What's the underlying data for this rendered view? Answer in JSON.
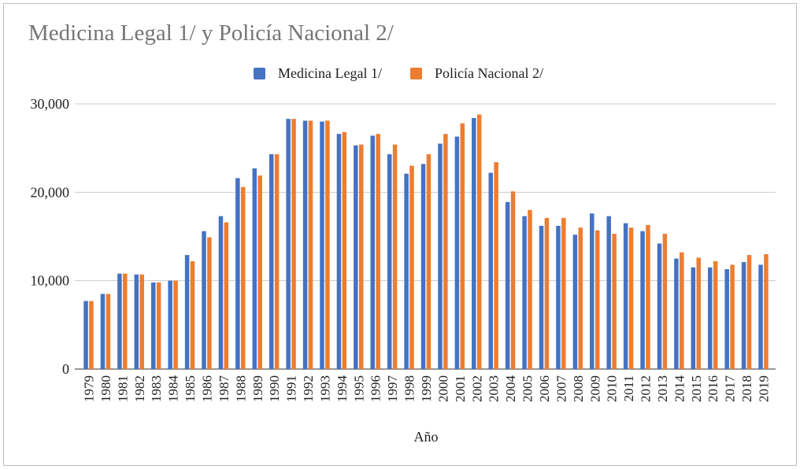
{
  "chart_data": {
    "type": "bar",
    "title": "Medicina Legal 1/ y Policía Nacional 2/",
    "xlabel": "Año",
    "ylabel": "",
    "ylim": [
      0,
      30000
    ],
    "yticks": [
      "0",
      "10,000",
      "20,000",
      "30,000"
    ],
    "grid": true,
    "legend_position": "top",
    "categories": [
      "1979",
      "1980",
      "1981",
      "1982",
      "1983",
      "1984",
      "1985",
      "1986",
      "1987",
      "1988",
      "1989",
      "1990",
      "1991",
      "1992",
      "1993",
      "1994",
      "1995",
      "1996",
      "1997",
      "1998",
      "1999",
      "2000",
      "2001",
      "2002",
      "2003",
      "2004",
      "2005",
      "2006",
      "2007",
      "2008",
      "2009",
      "2010",
      "2011",
      "2012",
      "2013",
      "2014",
      "2015",
      "2016",
      "2017",
      "2018",
      "2019"
    ],
    "series": [
      {
        "name": "Medicina Legal 1/",
        "color": "#4472c4",
        "values": [
          7700,
          8500,
          10800,
          10700,
          9800,
          10000,
          12900,
          15600,
          17300,
          21600,
          22700,
          24300,
          28300,
          28100,
          28000,
          26600,
          25300,
          26400,
          24300,
          22100,
          23200,
          25500,
          26300,
          28400,
          22200,
          18900,
          17300,
          16200,
          16200,
          15200,
          17600,
          17300,
          16500,
          15600,
          14200,
          12500,
          11500,
          11500,
          11300,
          12100,
          11800
        ]
      },
      {
        "name": "Policía Nacional 2/",
        "color": "#ed7d31",
        "values": [
          7700,
          8500,
          10800,
          10700,
          9800,
          10000,
          12200,
          14900,
          16600,
          20600,
          21900,
          24300,
          28300,
          28100,
          28100,
          26800,
          25400,
          26600,
          25400,
          23000,
          24300,
          26600,
          27800,
          28800,
          23400,
          20100,
          18000,
          17100,
          17100,
          16000,
          15700,
          15300,
          16000,
          16300,
          15300,
          13200,
          12600,
          12200,
          11800,
          12900,
          13000
        ]
      }
    ]
  }
}
